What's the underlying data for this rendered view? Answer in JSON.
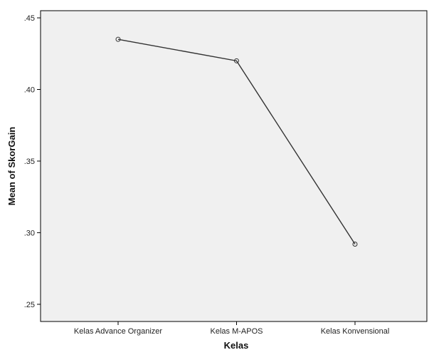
{
  "chart_data": {
    "type": "line",
    "title": "",
    "xlabel": "Kelas",
    "ylabel": "Mean of SkorGain",
    "categories": [
      "Kelas Advance Organizer",
      "Kelas M-APOS",
      "Kelas Konvensional"
    ],
    "series": [
      {
        "values": [
          0.435,
          0.42,
          0.292
        ]
      }
    ],
    "ylim": [
      0.238,
      0.455
    ],
    "yticks": [
      0.25,
      0.3,
      0.35,
      0.4,
      0.45
    ],
    "ytick_labels": [
      ".25",
      ".30",
      ".35",
      ".40",
      ".45"
    ],
    "grid": false,
    "legend": "none",
    "marker": "circle",
    "colors": {
      "plot_bg": "#f0f0f0",
      "line": "#333333",
      "axis": "#000000"
    }
  }
}
